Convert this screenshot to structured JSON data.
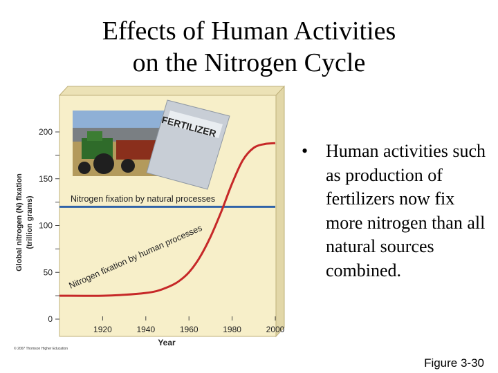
{
  "slide": {
    "title_line1": "Effects of Human Activities",
    "title_line2": "on the Nitrogen Cycle",
    "bullet": "Human activities such as production of fertilizers now fix more nitrogen than all natural sources combined.",
    "figure_label": "Figure 3-30",
    "copyright": "© 2007 Thomson Higher Education",
    "fertilizer_bag_text": "FERTILIZER"
  },
  "chart_data": {
    "type": "line",
    "xlabel": "Year",
    "ylabel_line1": "Global nitrogen (N) fixation",
    "ylabel_line2": "(trillion grams)",
    "xlim": [
      1900,
      2000
    ],
    "ylim": [
      0,
      200
    ],
    "x_ticks": [
      1920,
      1940,
      1960,
      1980,
      2000
    ],
    "y_ticks": [
      0,
      25,
      50,
      75,
      100,
      125,
      150,
      175,
      200
    ],
    "y_tick_labels": [
      {
        "value": 0,
        "label": "0"
      },
      {
        "value": 50,
        "label": "50"
      },
      {
        "value": 100,
        "label": "100"
      },
      {
        "value": 150,
        "label": "150"
      },
      {
        "value": 200,
        "label": "200"
      }
    ],
    "series": [
      {
        "name": "Nitrogen fixation by natural processes",
        "color": "#2e62a8",
        "x": [
          1900,
          2000
        ],
        "y": [
          120,
          120
        ]
      },
      {
        "name": "Nitrogen fixation by human processes",
        "color": "#c62828",
        "x": [
          1900,
          1920,
          1930,
          1940,
          1945,
          1950,
          1955,
          1960,
          1965,
          1970,
          1975,
          1980,
          1985,
          1990,
          1995,
          2000
        ],
        "y": [
          25,
          25,
          26,
          28,
          30,
          34,
          40,
          50,
          66,
          88,
          115,
          145,
          170,
          183,
          187,
          188
        ]
      }
    ],
    "colors": {
      "plot_background": "#f7efc9",
      "frame_side": "#e2d7a8"
    }
  }
}
